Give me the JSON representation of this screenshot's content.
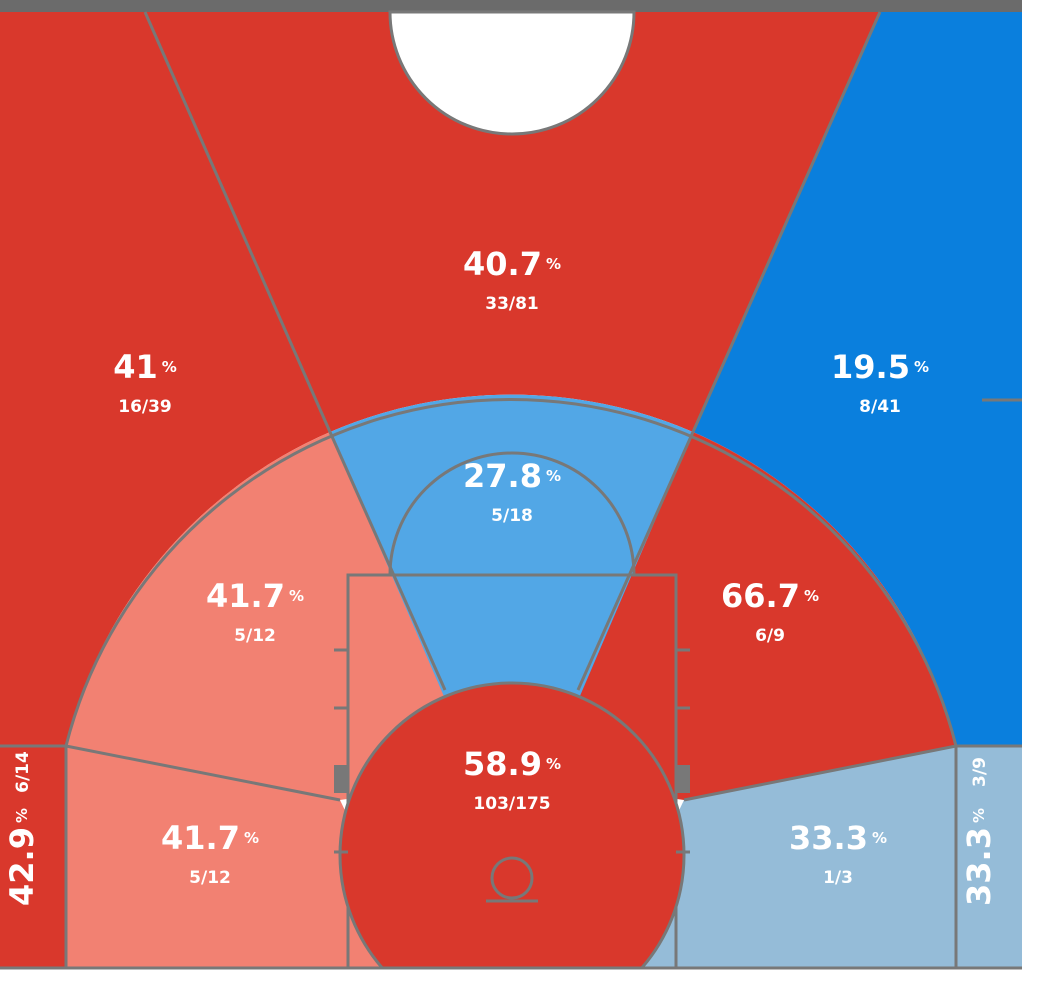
{
  "percent_symbol": "%",
  "zones": [
    {
      "pct": 40.7,
      "shots": "33/81",
      "color": "#d9382c"
    },
    {
      "pct": 41,
      "shots": "16/39",
      "color": "#d9382c"
    },
    {
      "pct": 19.5,
      "shots": "8/41",
      "color": "#0a7fdd"
    },
    {
      "pct": 27.8,
      "shots": "5/18",
      "color": "#52a7e6"
    },
    {
      "pct": 41.7,
      "shots": "5/12",
      "color": "#f28172"
    },
    {
      "pct": 66.7,
      "shots": "6/9",
      "color": "#d9382c"
    },
    {
      "pct": 58.9,
      "shots": "103/175",
      "color": "#d9382c"
    },
    {
      "pct": 41.7,
      "shots": "5/12",
      "color": "#f28172"
    },
    {
      "pct": 33.3,
      "shots": "1/3",
      "color": "#95bcd8"
    },
    {
      "pct": 42.9,
      "shots": "6/14",
      "color": "#d9382c"
    },
    {
      "pct": 33.3,
      "shots": "3/9",
      "color": "#95bcd8"
    }
  ]
}
